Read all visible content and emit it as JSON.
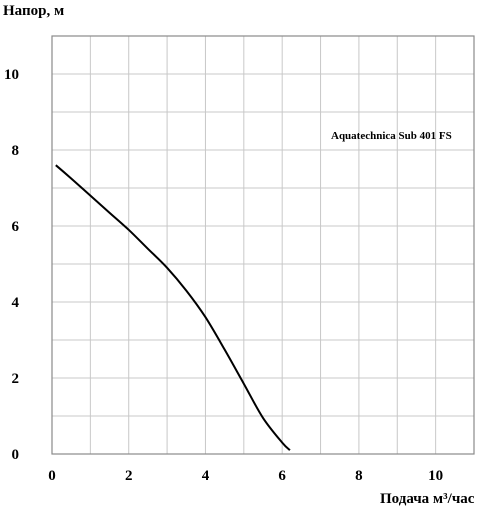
{
  "chart_data": {
    "type": "line",
    "title": "",
    "xlabel": "Подача  м³/час",
    "ylabel": "Напор, м",
    "xlim": [
      0,
      11
    ],
    "ylim": [
      0,
      11
    ],
    "x_ticks": [
      0,
      2,
      4,
      6,
      8,
      10
    ],
    "y_ticks": [
      0,
      2,
      4,
      6,
      8,
      10
    ],
    "x_tick_labels": [
      "0",
      "2",
      "4",
      "6",
      "8",
      "10"
    ],
    "y_tick_labels": [
      "0",
      "2",
      "4",
      "6",
      "8",
      "10"
    ],
    "grid": true,
    "legend_position": "top-right",
    "series": [
      {
        "name": "Aquatechnica Sub 401 FS",
        "color": "#000000",
        "x": [
          0.1,
          0.5,
          1.0,
          1.5,
          2.0,
          2.5,
          3.0,
          3.5,
          4.0,
          4.5,
          5.0,
          5.5,
          6.0,
          6.2
        ],
        "y": [
          7.6,
          7.25,
          6.8,
          6.35,
          5.9,
          5.4,
          4.9,
          4.3,
          3.6,
          2.75,
          1.85,
          0.95,
          0.3,
          0.1
        ]
      }
    ]
  }
}
